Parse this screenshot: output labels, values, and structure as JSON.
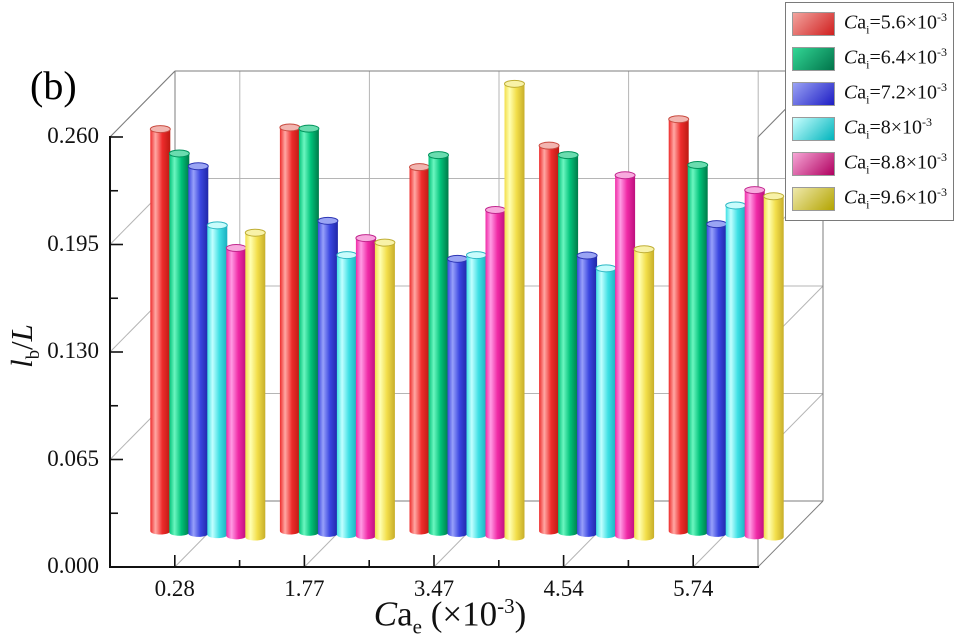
{
  "panel_label": "(b)",
  "colors": {
    "background": "#ffffff",
    "grid": "#b5b5b5",
    "axis": "#111111",
    "box_edge": "#7d7d7d",
    "legend_border": "#7a7a7a"
  },
  "chart_data": {
    "type": "bar",
    "style": "3d-cylinder-grouped",
    "title": "",
    "legend_position": "top-right",
    "grid": true,
    "categories": [
      "0.28",
      "1.77",
      "3.47",
      "4.54",
      "5.74"
    ],
    "x_axis": {
      "title_plain": "Ca_e (×10^-3)",
      "title_segments": [
        {
          "t": "C",
          "s": "i"
        },
        {
          "t": "a"
        },
        {
          "t": "e",
          "s": "sub"
        },
        {
          "t": " (×10"
        },
        {
          "t": "-3",
          "s": "sup"
        },
        {
          "t": ")"
        }
      ]
    },
    "y_axis": {
      "title_plain": "l_b/L",
      "title_segments": [
        {
          "t": "l",
          "s": "i"
        },
        {
          "t": "b",
          "s": "sub"
        },
        {
          "t": "/"
        },
        {
          "t": "L",
          "s": "i"
        }
      ],
      "ticks": [
        "0.000",
        "0.065",
        "0.130",
        "0.195",
        "0.260"
      ],
      "tick_values": [
        0,
        0.065,
        0.13,
        0.195,
        0.26
      ],
      "range": [
        0,
        0.26
      ],
      "minor_ticks_per_interval": 1
    },
    "series": [
      {
        "name_plain": "Ca_i=5.6×10^-3",
        "name_segments": [
          {
            "t": "C",
            "s": "i"
          },
          {
            "t": "a"
          },
          {
            "t": "i",
            "s": "sub"
          },
          {
            "t": "=5.6×10"
          },
          {
            "t": "-3",
            "s": "sup"
          }
        ],
        "colors": {
          "main": "#ee2c2c",
          "light": "#ffa8a4",
          "dark": "#bc1a12",
          "top_fill": "#f2b5b0",
          "top_stroke": "#c94b40",
          "legend": [
            "#f2a49e",
            "#d01f1f"
          ]
        },
        "values": [
          0.243,
          0.244,
          0.22,
          0.233,
          0.249
        ]
      },
      {
        "name_plain": "Ca_i=6.4×10^-3",
        "name_segments": [
          {
            "t": "C",
            "s": "i"
          },
          {
            "t": "a"
          },
          {
            "t": "i",
            "s": "sub"
          },
          {
            "t": "=6.4×10"
          },
          {
            "t": "-3",
            "s": "sup"
          }
        ],
        "colors": {
          "main": "#00c279",
          "light": "#6cf6c0",
          "dark": "#007a49",
          "top_fill": "#6adcaf",
          "top_stroke": "#00945c",
          "legend": [
            "#33d695",
            "#00744a"
          ]
        },
        "values": [
          0.229,
          0.244,
          0.228,
          0.228,
          0.222
        ]
      },
      {
        "name_plain": "Ca_i=7.2×10^-3",
        "name_segments": [
          {
            "t": "C",
            "s": "i"
          },
          {
            "t": "a"
          },
          {
            "t": "i",
            "s": "sub"
          },
          {
            "t": "=7.2×10"
          },
          {
            "t": "-3",
            "s": "sup"
          }
        ],
        "colors": {
          "main": "#3a46e0",
          "light": "#97a0fa",
          "dark": "#1f27a8",
          "top_fill": "#9aa4f4",
          "top_stroke": "#2d36b5",
          "legend": [
            "#9aa2f4",
            "#1d1dc4"
          ]
        },
        "values": [
          0.222,
          0.189,
          0.166,
          0.168,
          0.187
        ]
      },
      {
        "name_plain": "Ca_i=8×10^-3",
        "name_segments": [
          {
            "t": "C",
            "s": "i"
          },
          {
            "t": "a"
          },
          {
            "t": "i",
            "s": "sub"
          },
          {
            "t": "=8×10"
          },
          {
            "t": "-3",
            "s": "sup"
          }
        ],
        "colors": {
          "main": "#3fe0e4",
          "light": "#c2ffff",
          "dark": "#1aafc0",
          "top_fill": "#c8fcfc",
          "top_stroke": "#2cb8c4",
          "legend": [
            "#c9ffff",
            "#00b4bc"
          ]
        },
        "values": [
          0.187,
          0.169,
          0.169,
          0.161,
          0.199
        ]
      },
      {
        "name_plain": "Ca_i=8.8×10^-3",
        "name_segments": [
          {
            "t": "C",
            "s": "i"
          },
          {
            "t": "a"
          },
          {
            "t": "i",
            "s": "sub"
          },
          {
            "t": "=8.8×10"
          },
          {
            "t": "-3",
            "s": "sup"
          }
        ],
        "colors": {
          "main": "#f02aa6",
          "light": "#ff9ce4",
          "dark": "#bd0f7d",
          "top_fill": "#f8aade",
          "top_stroke": "#c2268e",
          "legend": [
            "#f6a6d6",
            "#b00060"
          ]
        },
        "values": [
          0.174,
          0.18,
          0.197,
          0.218,
          0.209
        ]
      },
      {
        "name_plain": "Ca_i=9.6×10^-3",
        "name_segments": [
          {
            "t": "C",
            "s": "i"
          },
          {
            "t": "a"
          },
          {
            "t": "i",
            "s": "sub"
          },
          {
            "t": "=9.6×10"
          },
          {
            "t": "-3",
            "s": "sup"
          }
        ],
        "colors": {
          "main": "#f2de4a",
          "light": "#ffffb2",
          "dark": "#c7ae2a",
          "top_fill": "#f8f2a8",
          "top_stroke": "#bfae35",
          "legend": [
            "#efe9ac",
            "#b3a400"
          ]
        },
        "values": [
          0.184,
          0.178,
          0.274,
          0.174,
          0.206
        ]
      }
    ]
  }
}
